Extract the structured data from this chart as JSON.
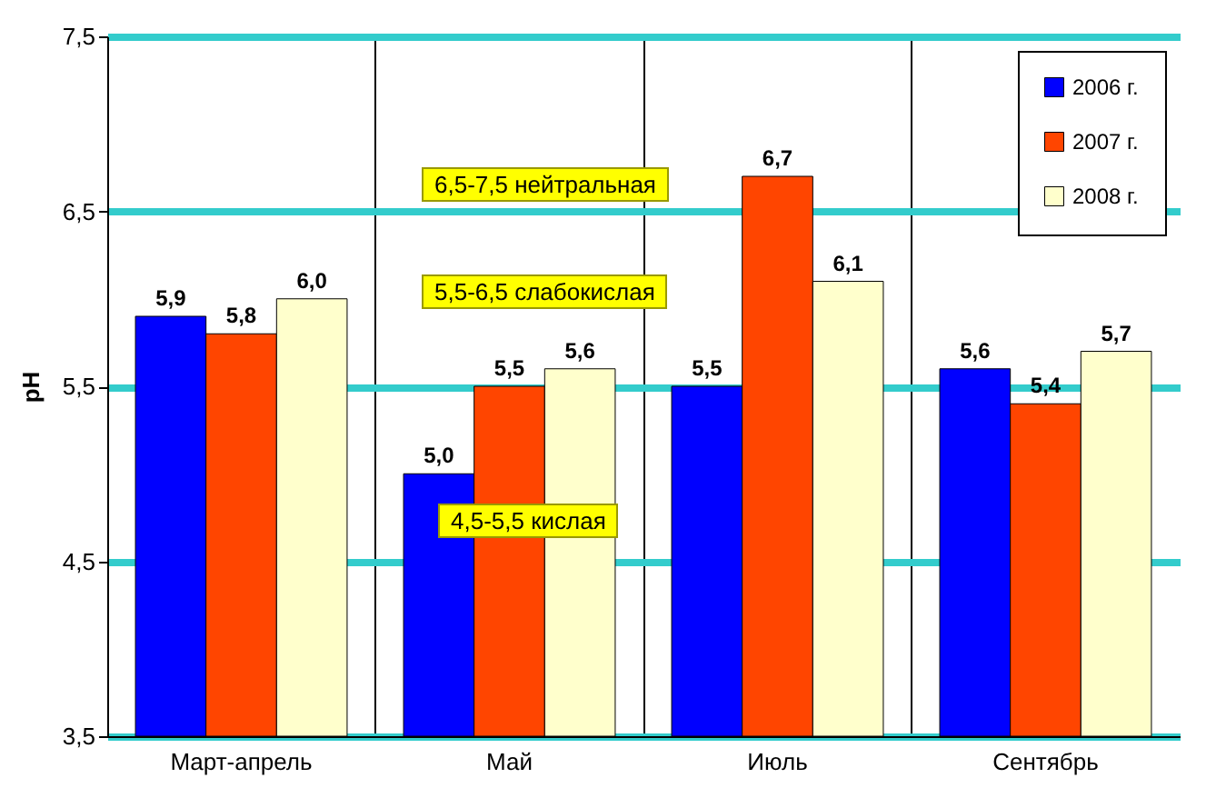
{
  "chart_data": {
    "type": "bar",
    "ylabel": "pH",
    "categories": [
      "Март-апрель",
      "Май",
      "Июль",
      "Сентябрь"
    ],
    "series": [
      {
        "name": "2006 г.",
        "color": "#0000ff",
        "values": [
          5.9,
          5.0,
          5.5,
          5.6
        ],
        "value_labels": [
          "5,9",
          "5,0",
          "5,5",
          "5,6"
        ]
      },
      {
        "name": "2007 г.",
        "color": "#ff4500",
        "values": [
          5.8,
          5.5,
          6.7,
          5.4
        ],
        "value_labels": [
          "5,8",
          "5,5",
          "6,7",
          "5,4"
        ]
      },
      {
        "name": "2008 г.",
        "color": "#ffffcc",
        "values": [
          6.0,
          5.6,
          6.1,
          5.7
        ],
        "value_labels": [
          "6,0",
          "5,6",
          "6,1",
          "5,7"
        ]
      }
    ],
    "ylim": [
      3.5,
      7.5
    ],
    "yticks": [
      {
        "value": 3.5,
        "label": "3,5"
      },
      {
        "value": 4.5,
        "label": "4,5"
      },
      {
        "value": 5.5,
        "label": "5,5"
      },
      {
        "value": 6.5,
        "label": "6,5"
      },
      {
        "value": 7.5,
        "label": "7,5"
      }
    ],
    "grid": true,
    "legend": "top right",
    "annotations": [
      "6,5-7,5 нейтральная",
      "5,5-6,5 слабокислая",
      "4,5-5,5 кислая"
    ]
  }
}
